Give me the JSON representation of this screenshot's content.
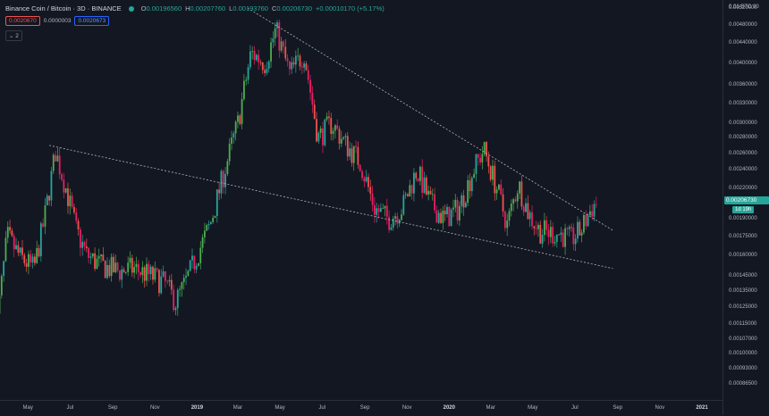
{
  "legend": {
    "symbol": "Binance Coin / Bitcoin",
    "interval": "3D",
    "exchange": "BINANCE",
    "open_key": "O",
    "open": "0.00196560",
    "high_key": "H",
    "high": "0.00207760",
    "low_key": "L",
    "low": "0.00193760",
    "close_key": "C",
    "close": "0.00206730",
    "change": "+0.00010170 (+5.17%)"
  },
  "order": {
    "sell": "0.0020670",
    "spread": "0.0000003",
    "buy": "0.0020673"
  },
  "indicators": {
    "collapse_label": "2"
  },
  "price_axis": {
    "header": "0.01 BTC 30",
    "ticks": [
      "0.00520000",
      "0.00480000",
      "0.00440000",
      "0.00400000",
      "0.00360000",
      "0.00330000",
      "0.00300000",
      "0.00280000",
      "0.00260000",
      "0.00240000",
      "0.00220000",
      "0.00190000",
      "0.00175000",
      "0.00160000",
      "0.00145000",
      "0.00135000",
      "0.00125000",
      "0.00115000",
      "0.00107000",
      "0.00100000",
      "0.00093000",
      "0.00086500"
    ],
    "last_price": "0.00206730",
    "pct_change": "1d 19h"
  },
  "time_axis": {
    "ticks": [
      {
        "label": "May",
        "bold": false
      },
      {
        "label": "Jul",
        "bold": false
      },
      {
        "label": "Sep",
        "bold": false
      },
      {
        "label": "Nov",
        "bold": false
      },
      {
        "label": "2019",
        "bold": true
      },
      {
        "label": "Mar",
        "bold": false
      },
      {
        "label": "May",
        "bold": false
      },
      {
        "label": "Jul",
        "bold": false
      },
      {
        "label": "Sep",
        "bold": false
      },
      {
        "label": "Nov",
        "bold": false
      },
      {
        "label": "2020",
        "bold": true
      },
      {
        "label": "Mar",
        "bold": false
      },
      {
        "label": "May",
        "bold": false
      },
      {
        "label": "Jul",
        "bold": false
      },
      {
        "label": "Sep",
        "bold": false
      },
      {
        "label": "Nov",
        "bold": false
      },
      {
        "label": "2021",
        "bold": true
      }
    ]
  },
  "colors": {
    "background": "#131722",
    "up": "#26a69a",
    "up_bright": "#4caf50",
    "down": "#ef5350",
    "down_pink": "#e91e63",
    "trendline": "#b2b5be"
  },
  "chart_data": {
    "type": "candlestick",
    "y_scale": "log",
    "ylim": [
      0.000865,
      0.0052
    ],
    "series_close": [
      {
        "date": "2018-03-15",
        "close": 0.00108
      },
      {
        "date": "2018-04-01",
        "close": 0.00175
      },
      {
        "date": "2018-04-20",
        "close": 0.00158
      },
      {
        "date": "2018-05-10",
        "close": 0.0015
      },
      {
        "date": "2018-05-25",
        "close": 0.0019
      },
      {
        "date": "2018-06-10",
        "close": 0.00262
      },
      {
        "date": "2018-06-25",
        "close": 0.0022
      },
      {
        "date": "2018-07-10",
        "close": 0.0018
      },
      {
        "date": "2018-07-25",
        "close": 0.0016
      },
      {
        "date": "2018-08-15",
        "close": 0.00152
      },
      {
        "date": "2018-09-10",
        "close": 0.00148
      },
      {
        "date": "2018-10-01",
        "close": 0.0015
      },
      {
        "date": "2018-10-25",
        "close": 0.00145
      },
      {
        "date": "2018-11-15",
        "close": 0.0014
      },
      {
        "date": "2018-12-01",
        "close": 0.00128
      },
      {
        "date": "2018-12-15",
        "close": 0.0014
      },
      {
        "date": "2019-01-01",
        "close": 0.0016
      },
      {
        "date": "2019-01-20",
        "close": 0.00185
      },
      {
        "date": "2019-02-10",
        "close": 0.0024
      },
      {
        "date": "2019-03-01",
        "close": 0.003
      },
      {
        "date": "2019-03-20",
        "close": 0.0042
      },
      {
        "date": "2019-04-10",
        "close": 0.004
      },
      {
        "date": "2019-04-25",
        "close": 0.0047
      },
      {
        "date": "2019-05-15",
        "close": 0.0038
      },
      {
        "date": "2019-06-05",
        "close": 0.0042
      },
      {
        "date": "2019-06-25",
        "close": 0.0028
      },
      {
        "date": "2019-07-15",
        "close": 0.003
      },
      {
        "date": "2019-08-05",
        "close": 0.0027
      },
      {
        "date": "2019-08-25",
        "close": 0.0025
      },
      {
        "date": "2019-09-15",
        "close": 0.002
      },
      {
        "date": "2019-10-05",
        "close": 0.0019
      },
      {
        "date": "2019-10-25",
        "close": 0.002
      },
      {
        "date": "2019-11-15",
        "close": 0.0024
      },
      {
        "date": "2019-12-05",
        "close": 0.00205
      },
      {
        "date": "2019-12-25",
        "close": 0.0019
      },
      {
        "date": "2020-01-15",
        "close": 0.002
      },
      {
        "date": "2020-02-05",
        "close": 0.0024
      },
      {
        "date": "2020-02-20",
        "close": 0.00265
      },
      {
        "date": "2020-03-10",
        "close": 0.0022
      },
      {
        "date": "2020-03-25",
        "close": 0.00185
      },
      {
        "date": "2020-04-10",
        "close": 0.00225
      },
      {
        "date": "2020-04-25",
        "close": 0.00195
      },
      {
        "date": "2020-05-10",
        "close": 0.0018
      },
      {
        "date": "2020-05-25",
        "close": 0.00178
      },
      {
        "date": "2020-06-10",
        "close": 0.00177
      },
      {
        "date": "2020-06-25",
        "close": 0.00172
      },
      {
        "date": "2020-07-10",
        "close": 0.0018
      },
      {
        "date": "2020-07-25",
        "close": 0.002
      },
      {
        "date": "2020-08-03",
        "close": 0.00207
      }
    ],
    "trendlines": [
      {
        "name": "upper",
        "start": {
          "date": "2019-03-15",
          "price": 0.0052
        },
        "end": {
          "date": "2020-08-25",
          "price": 0.0018
        }
      },
      {
        "name": "lower",
        "start": {
          "date": "2018-06-01",
          "price": 0.0027
        },
        "end": {
          "date": "2020-08-25",
          "price": 0.0015
        }
      }
    ]
  }
}
